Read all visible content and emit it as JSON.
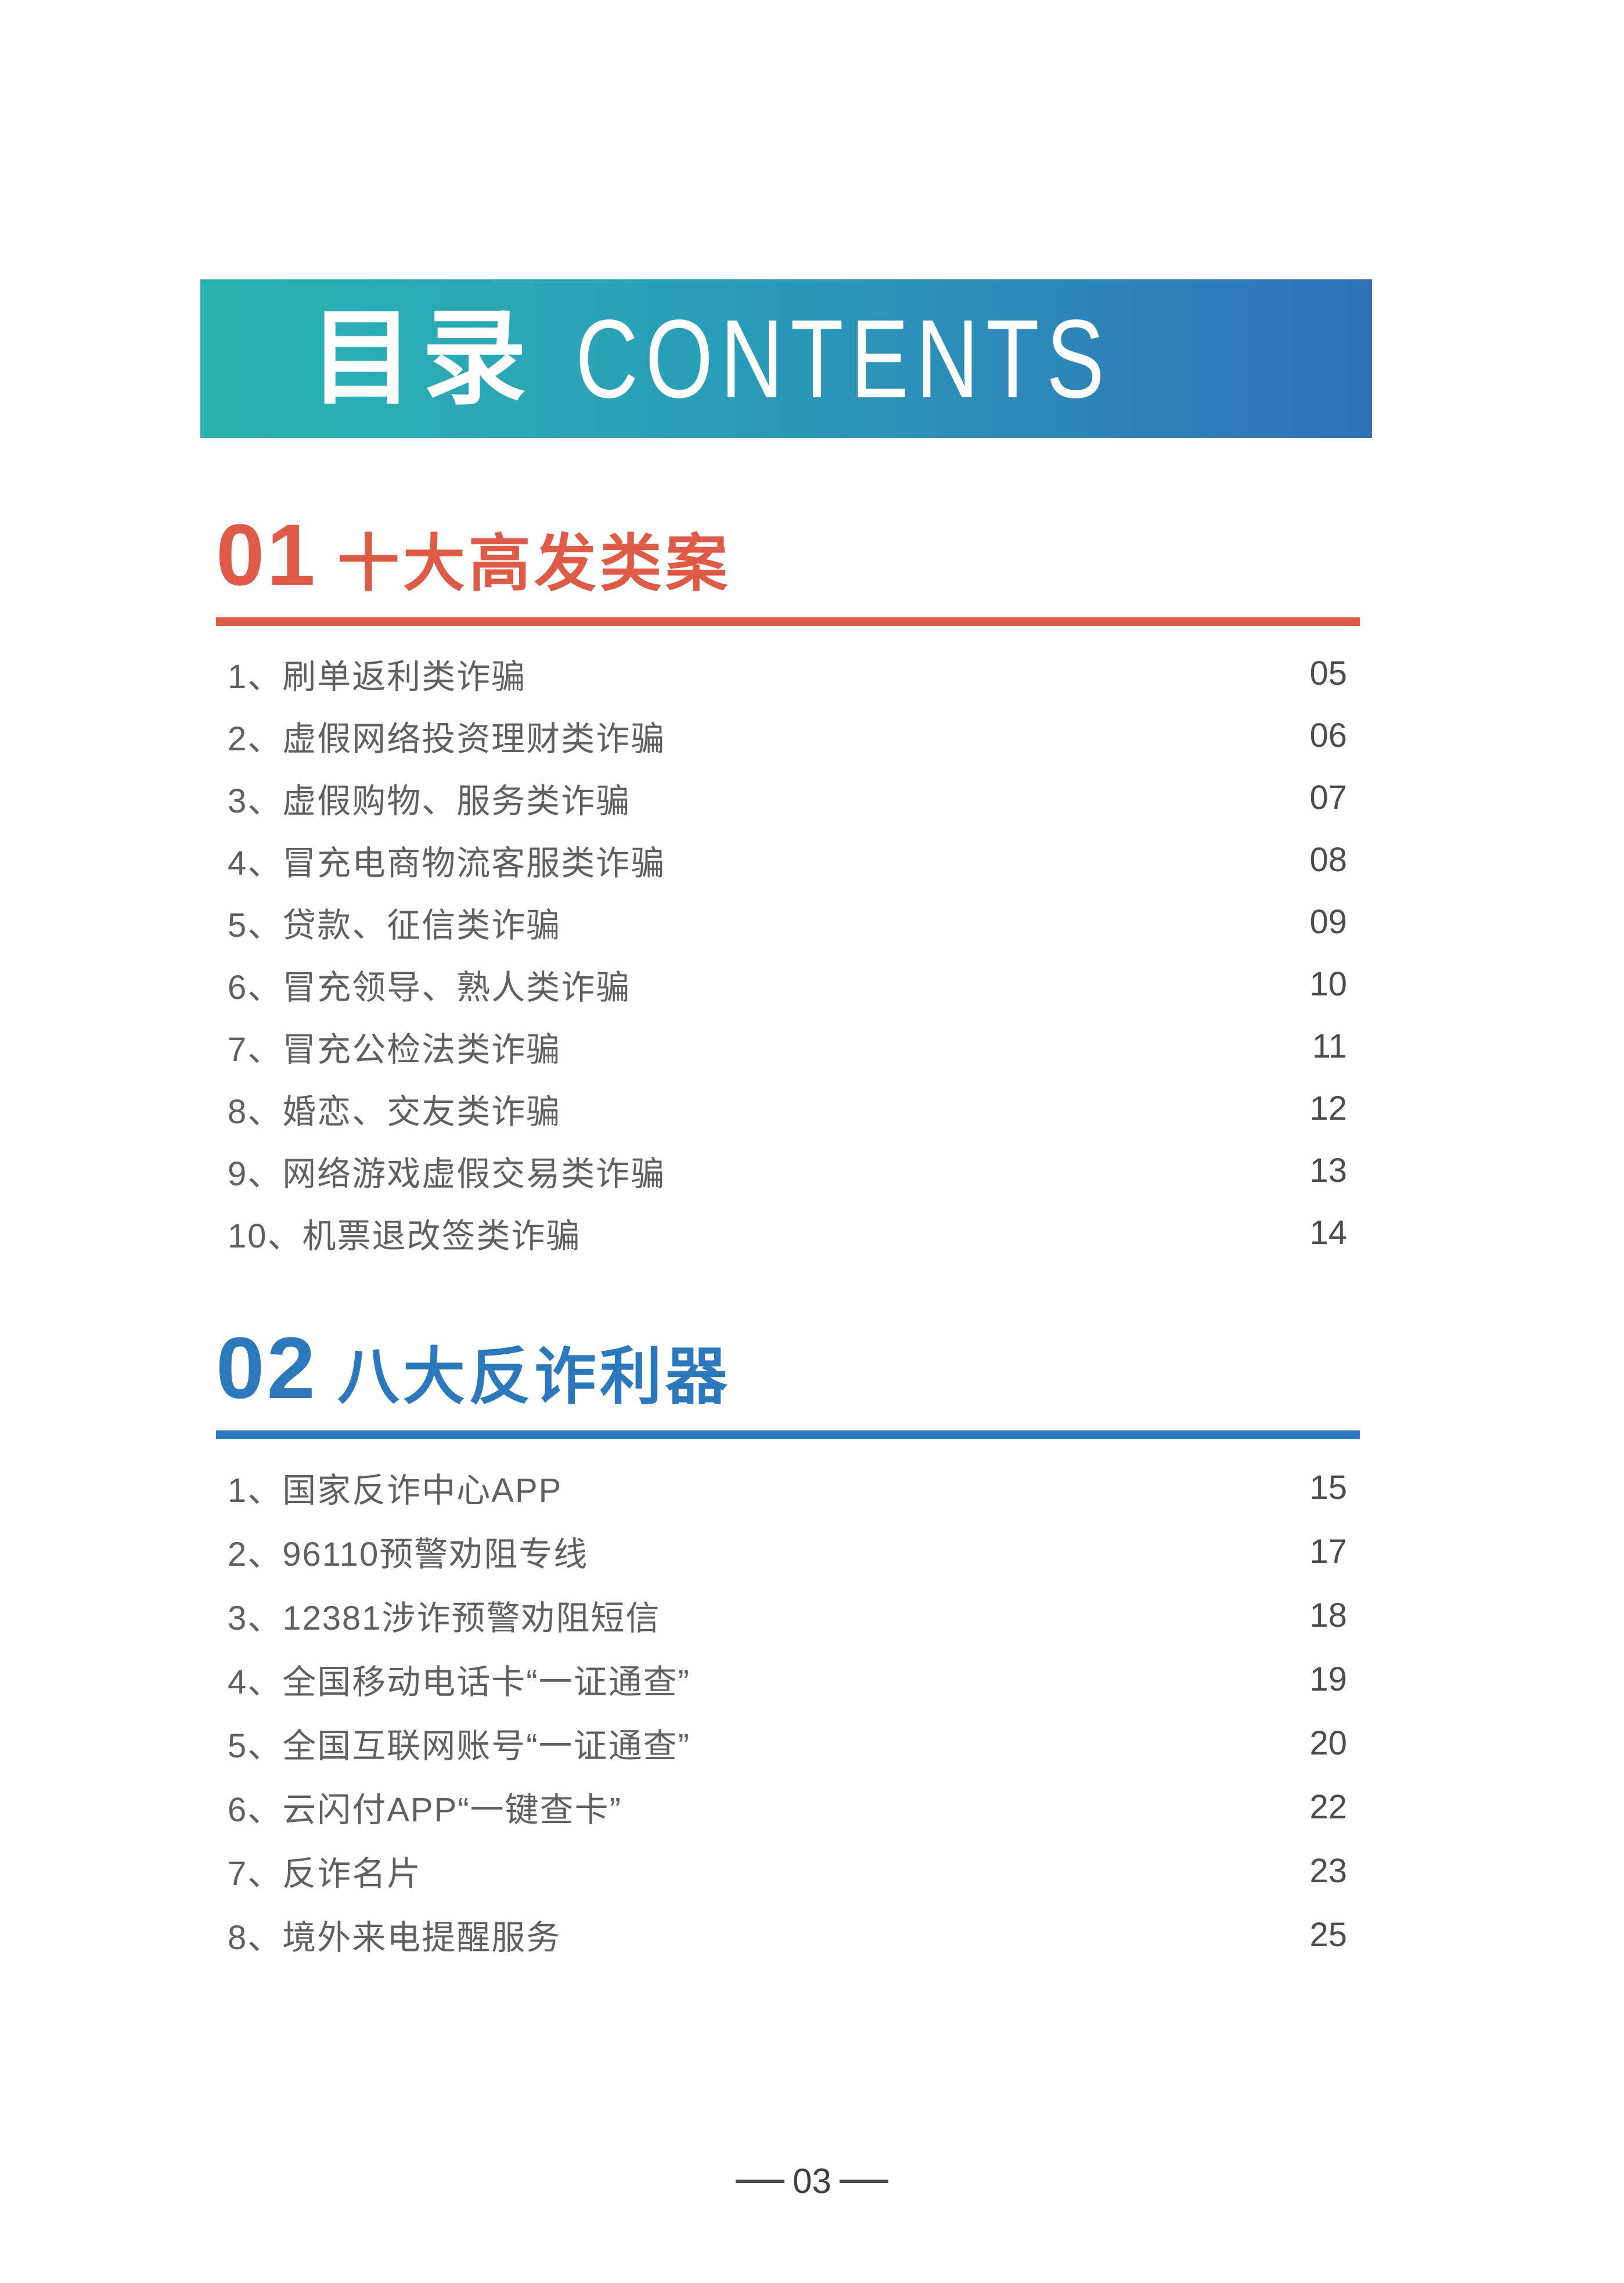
{
  "banner": {
    "title_zh": "目录",
    "title_en": "CONTENTS",
    "gradient_from": "#2ab4b1",
    "gradient_to": "#3071b8",
    "text_color": "#ffffff"
  },
  "sections": [
    {
      "number": "01",
      "title": "十大高发类案",
      "accent_color": "#df5b47",
      "items": [
        {
          "label": "1、刷单返利类诈骗",
          "page": "05"
        },
        {
          "label": "2、虚假网络投资理财类诈骗",
          "page": "06"
        },
        {
          "label": "3、虚假购物、服务类诈骗",
          "page": "07"
        },
        {
          "label": "4、冒充电商物流客服类诈骗",
          "page": "08"
        },
        {
          "label": "5、贷款、征信类诈骗",
          "page": "09"
        },
        {
          "label": "6、冒充领导、熟人类诈骗",
          "page": "10"
        },
        {
          "label": "7、冒充公检法类诈骗",
          "page": "11"
        },
        {
          "label": "8、婚恋、交友类诈骗",
          "page": "12"
        },
        {
          "label": "9、网络游戏虚假交易类诈骗",
          "page": "13"
        },
        {
          "label": "10、机票退改签类诈骗",
          "page": "14"
        }
      ]
    },
    {
      "number": "02",
      "title": "八大反诈利器",
      "accent_color": "#2b78bd",
      "items": [
        {
          "label": "1、国家反诈中心APP",
          "page": "15"
        },
        {
          "label": "2、96110预警劝阻专线",
          "page": "17"
        },
        {
          "label": "3、12381涉诈预警劝阻短信",
          "page": "18"
        },
        {
          "label": "4、全国移动电话卡“一证通查”",
          "page": "19"
        },
        {
          "label": "5、全国互联网账号“一证通查”",
          "page": "20"
        },
        {
          "label": "6、云闪付APP“一键查卡”",
          "page": "22"
        },
        {
          "label": "7、反诈名片",
          "page": "23"
        },
        {
          "label": "8、境外来电提醒服务",
          "page": "25"
        }
      ]
    }
  ],
  "footer": {
    "page_number": "03"
  },
  "text_colors": {
    "item_label": "#606060",
    "item_page": "#4d4d4d",
    "footer": "#3f3f3f"
  }
}
